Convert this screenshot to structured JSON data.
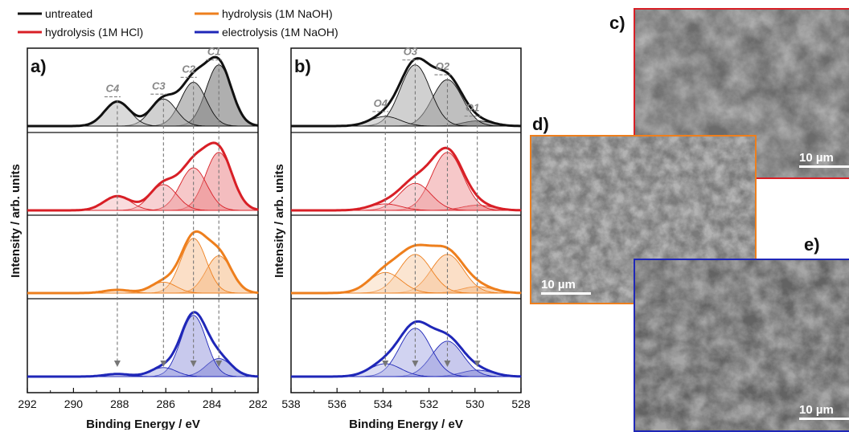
{
  "legend": [
    {
      "label": "untreated",
      "color": "#111111"
    },
    {
      "label": "hydrolysis (1M NaOH)",
      "color": "#ee7f1d"
    },
    {
      "label": "hydrolysis (1M HCl)",
      "color": "#d81f26"
    },
    {
      "label": "electrolysis (1M NaOH)",
      "color": "#1f27b8"
    }
  ],
  "panels": {
    "a": "a)",
    "b": "b)",
    "c": "c)",
    "d": "d)",
    "e": "e)"
  },
  "ylabel": "Intensity / arb. units",
  "xlabel": "Binding Energy / eV",
  "scalebar_text": "10 µm",
  "chart_data": [
    {
      "type": "line",
      "panel": "a)",
      "xlabel": "Binding Energy / eV",
      "ylabel": "Intensity / arb. units",
      "xlim": [
        292,
        282
      ],
      "xticks": [
        292,
        290,
        288,
        286,
        284,
        282
      ],
      "reversed_x": true,
      "components": [
        {
          "name": "C1",
          "center": 283.7
        },
        {
          "name": "C2",
          "center": 284.8
        },
        {
          "name": "C3",
          "center": 286.1
        },
        {
          "name": "C4",
          "center": 288.1
        }
      ],
      "series": [
        {
          "condition": "untreated",
          "color": "#111111",
          "width": 0.55,
          "peaks": [
            0.95,
            0.68,
            0.42,
            0.38
          ]
        },
        {
          "condition": "hydrolysis (1M HCl)",
          "color": "#d81f26",
          "width": 0.58,
          "peaks": [
            0.9,
            0.66,
            0.4,
            0.22
          ]
        },
        {
          "condition": "hydrolysis (1M NaOH)",
          "color": "#ee7f1d",
          "width": 0.55,
          "peaks": [
            0.58,
            0.85,
            0.17,
            0.05
          ]
        },
        {
          "condition": "electrolysis (1M NaOH)",
          "color": "#1f27b8",
          "width": 0.55,
          "peaks": [
            0.28,
            0.95,
            0.14,
            0.04
          ]
        }
      ]
    },
    {
      "type": "line",
      "panel": "b)",
      "xlabel": "Binding Energy / eV",
      "ylabel": "Intensity / arb. units",
      "xlim": [
        538,
        528
      ],
      "xticks": [
        538,
        536,
        534,
        532,
        530,
        528
      ],
      "reversed_x": true,
      "components": [
        {
          "name": "O1",
          "center": 529.9
        },
        {
          "name": "O2",
          "center": 531.2
        },
        {
          "name": "O3",
          "center": 532.6
        },
        {
          "name": "O4",
          "center": 533.9
        }
      ],
      "series": [
        {
          "condition": "untreated",
          "color": "#111111",
          "width": 0.65,
          "peaks": [
            0.08,
            0.72,
            0.95,
            0.15
          ]
        },
        {
          "condition": "hydrolysis (1M HCl)",
          "color": "#d81f26",
          "width": 0.68,
          "peaks": [
            0.08,
            0.9,
            0.42,
            0.1
          ]
        },
        {
          "condition": "hydrolysis (1M NaOH)",
          "color": "#ee7f1d",
          "width": 0.7,
          "peaks": [
            0.1,
            0.6,
            0.6,
            0.32
          ]
        },
        {
          "condition": "electrolysis (1M NaOH)",
          "color": "#1f27b8",
          "width": 0.68,
          "peaks": [
            0.1,
            0.55,
            0.75,
            0.2
          ]
        }
      ]
    }
  ]
}
